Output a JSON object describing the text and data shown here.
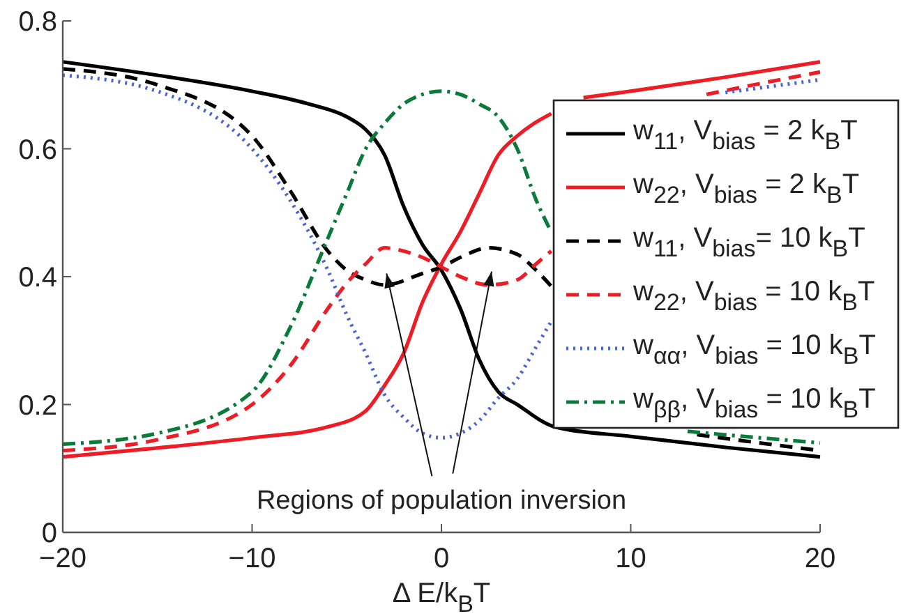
{
  "chart_data": {
    "type": "line",
    "xlabel": "Δ E/k$_{B}$T",
    "xlim": [
      -20,
      20
    ],
    "xticks": [
      {
        "value": -20,
        "label": "−20"
      },
      {
        "value": -10,
        "label": "−10"
      },
      0,
      10,
      20
    ],
    "ylim": [
      0,
      0.8
    ],
    "yticks": [
      0,
      0.2,
      0.4,
      0.6,
      0.8
    ],
    "grid": false,
    "legend": "right",
    "marker": "none",
    "annotations": [
      "Regions of population inversion"
    ],
    "series": [
      {
        "name": "w$_{11}$, V$_{bias}$ = 2 k$_{B}$T",
        "color": "#000000",
        "line_style": "solid",
        "x": [
          -20,
          -15,
          -10,
          -7,
          -5,
          -4,
          -3,
          -2,
          -1,
          0,
          1,
          2,
          3,
          4,
          6,
          10,
          15,
          20
        ],
        "values": [
          0.736,
          0.715,
          0.69,
          0.67,
          0.65,
          0.63,
          0.59,
          0.51,
          0.45,
          0.41,
          0.35,
          0.27,
          0.22,
          0.2,
          0.165,
          0.15,
          0.133,
          0.118
        ]
      },
      {
        "name": "w$_{22}$, V$_{bias}$ = 2 k$_{B}$T",
        "color": "#ee1c24",
        "line_style": "solid",
        "x": [
          -20,
          -15,
          -10,
          -6,
          -4,
          -3,
          -2,
          -1,
          0,
          1,
          2,
          3,
          4,
          5.8,
          6.5,
          7.5,
          10,
          15,
          20
        ],
        "values": [
          0.118,
          0.132,
          0.148,
          0.165,
          0.19,
          0.23,
          0.28,
          0.36,
          0.42,
          0.47,
          0.53,
          0.59,
          0.62,
          0.655,
          null,
          0.68,
          0.69,
          0.712,
          0.736
        ]
      },
      {
        "name": "w$_{11}$, V$_{bias}$= 10 k$_{B}$T",
        "color": "#000000",
        "line_style": "dashed",
        "x": [
          -20,
          -15,
          -10,
          -8,
          -6,
          -5,
          -4,
          -3,
          -1,
          0,
          1,
          2.5,
          4,
          5,
          5.8,
          10,
          13.5,
          16,
          20
        ],
        "values": [
          0.725,
          0.7,
          0.62,
          0.535,
          0.44,
          0.41,
          0.395,
          0.387,
          0.405,
          0.415,
          0.43,
          0.445,
          0.435,
          0.41,
          0.385,
          null,
          0.153,
          0.143,
          0.128
        ]
      },
      {
        "name": "w$_{22}$, V$_{bias}$ = 10 k$_{B}$T",
        "color": "#ee1c24",
        "line_style": "dashed",
        "x": [
          -20,
          -15,
          -10,
          -8,
          -6,
          -5,
          -4,
          -3,
          -2,
          -1,
          0,
          1,
          2.5,
          4,
          5,
          5.8,
          10,
          14,
          17,
          20
        ],
        "values": [
          0.128,
          0.145,
          0.2,
          0.26,
          0.35,
          0.39,
          0.42,
          0.445,
          0.44,
          0.43,
          0.415,
          0.4,
          0.387,
          0.395,
          0.42,
          0.44,
          null,
          0.685,
          0.703,
          0.72
        ]
      },
      {
        "name": "w$_{αα}$, V$_{bias}$ = 10 k$_{B}$T",
        "color": "#4a64d0",
        "line_style": "dotted",
        "x": [
          -20,
          -15,
          -10,
          -8,
          -6,
          -5,
          -4,
          -3,
          -2,
          -1,
          0,
          1,
          2,
          3,
          4,
          5,
          5.8,
          10,
          15,
          17.5,
          20
        ],
        "values": [
          0.715,
          0.69,
          0.6,
          0.52,
          0.41,
          0.34,
          0.28,
          0.215,
          0.18,
          0.155,
          0.148,
          0.155,
          0.175,
          0.21,
          0.24,
          0.29,
          0.33,
          null,
          0.688,
          0.698,
          0.708
        ]
      },
      {
        "name": "w$_{ββ}$, V$_{bias}$ = 10 k$_{B}$T",
        "color": "#0a7a3a",
        "line_style": "dashdot",
        "x": [
          -20,
          -15,
          -10,
          -8,
          -6,
          -5,
          -4,
          -3,
          -2,
          -1,
          0,
          1,
          2,
          3,
          4,
          5,
          5.8,
          10,
          13,
          16,
          20
        ],
        "values": [
          0.138,
          0.155,
          0.22,
          0.32,
          0.46,
          0.53,
          0.6,
          0.64,
          0.67,
          0.685,
          0.69,
          0.685,
          0.67,
          0.65,
          0.6,
          0.52,
          0.47,
          null,
          0.158,
          0.15,
          0.14
        ]
      }
    ]
  }
}
